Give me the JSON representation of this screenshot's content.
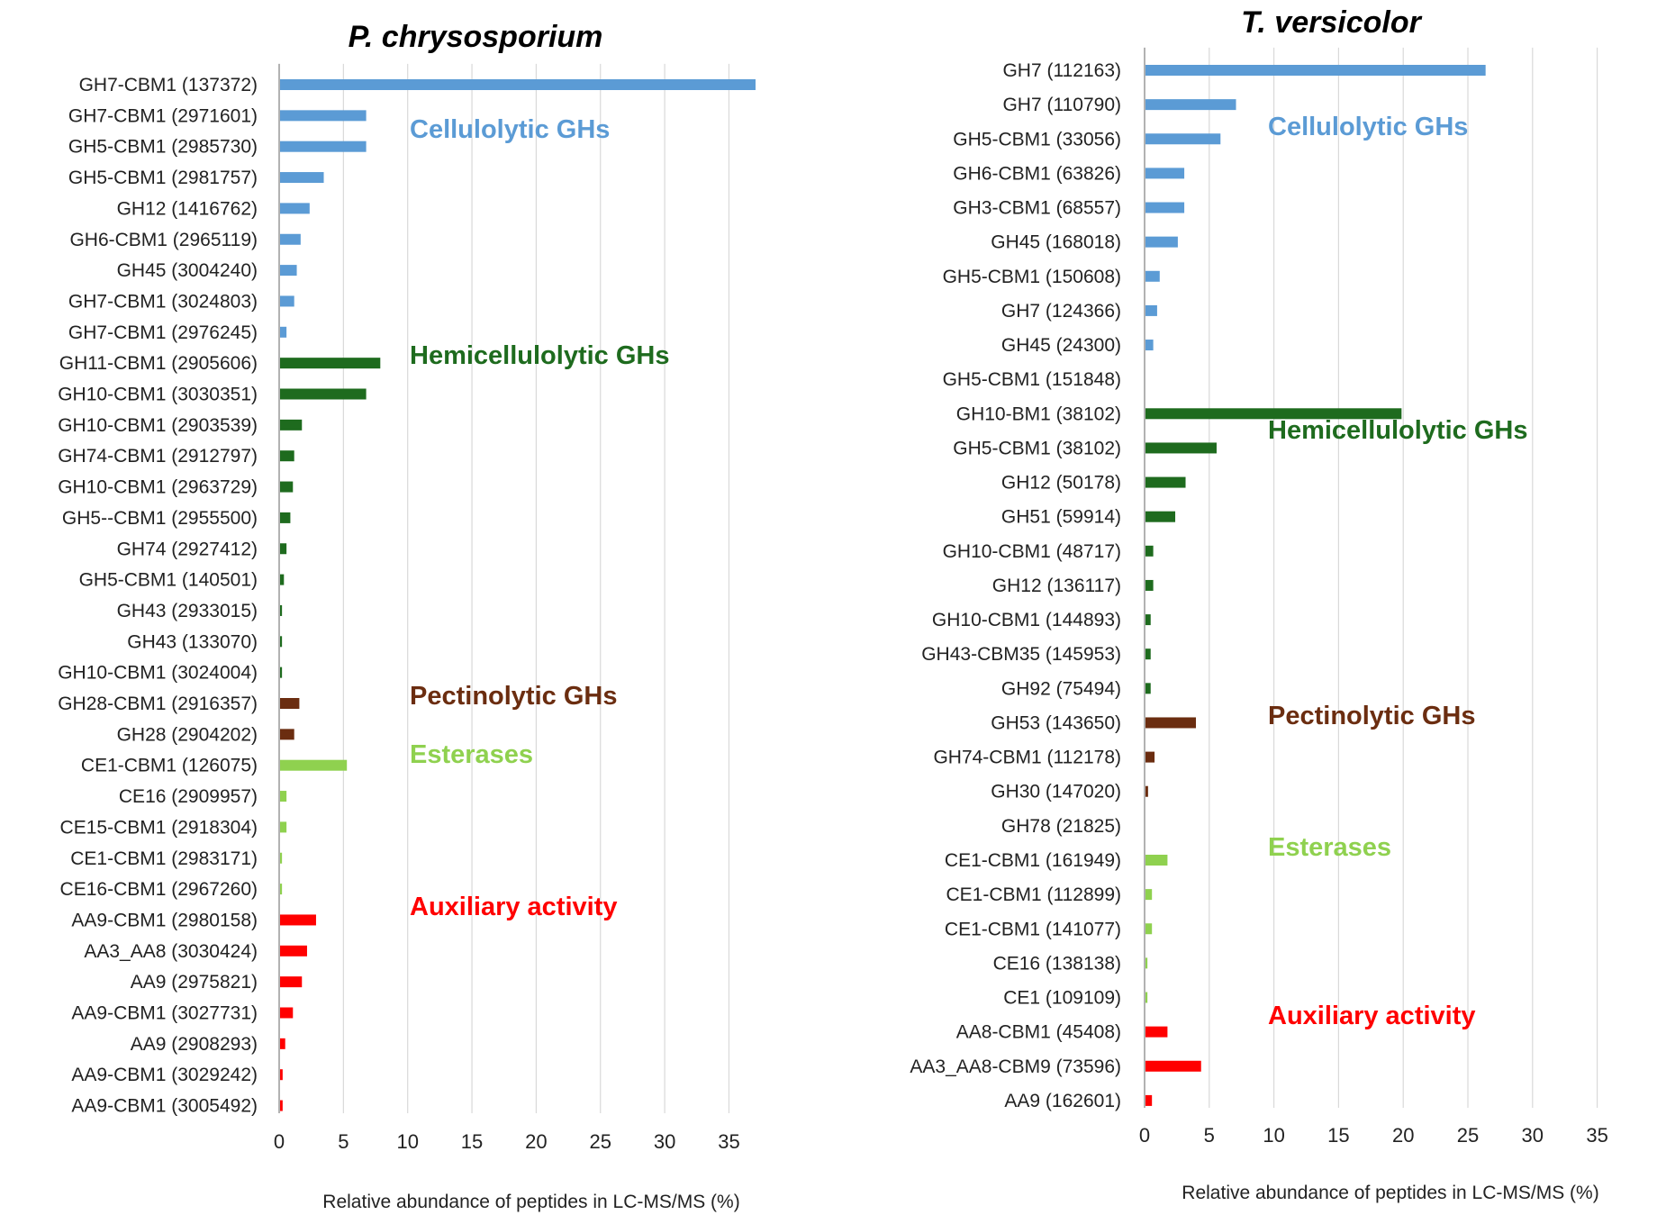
{
  "chart_data": [
    {
      "type": "bar",
      "orientation": "horizontal",
      "title": "P. chrysosporium",
      "xlabel": "Relative abundance of peptides in LC-MS/MS  (%)",
      "xlim": [
        0,
        37
      ],
      "xticks": [
        0,
        5,
        10,
        15,
        20,
        25,
        30,
        35
      ],
      "grid": "vertical",
      "categories": [
        "GH7-CBM1 (137372)",
        "GH7-CBM1 (2971601)",
        "GH5-CBM1 (2985730)",
        "GH5-CBM1 (2981757)",
        "GH12 (1416762)",
        "GH6-CBM1 (2965119)",
        "GH45 (3004240)",
        "GH7-CBM1 (3024803)",
        "GH7-CBM1 (2976245)",
        "GH11-CBM1 (2905606)",
        "GH10-CBM1 (3030351)",
        "GH10-CBM1 (2903539)",
        "GH74-CBM1 (2912797)",
        "GH10-CBM1 (2963729)",
        "GH5--CBM1 (2955500)",
        "GH74 (2927412)",
        "GH5-CBM1 (140501)",
        "GH43 (2933015)",
        "GH43 (133070)",
        "GH10-CBM1 (3024004)",
        "GH28-CBM1 (2916357)",
        "GH28 (2904202)",
        "CE1-CBM1 (126075)",
        "CE16 (2909957)",
        "CE15-CBM1 (2918304)",
        "CE1-CBM1 (2983171)",
        "CE16-CBM1 (2967260)",
        "AA9-CBM1 (2980158)",
        "AA3_AA8 (3030424)",
        "AA9 (2975821)",
        "AA9-CBM1 (3027731)",
        "AA9 (2908293)",
        "AA9-CBM1 (3029242)",
        "AA9-CBM1 (3005492)"
      ],
      "values": [
        37,
        6.7,
        6.7,
        3.4,
        2.3,
        1.6,
        1.3,
        1.1,
        0.5,
        7.8,
        6.7,
        1.7,
        1.1,
        1.0,
        0.8,
        0.5,
        0.3,
        0.15,
        0.15,
        0.15,
        1.5,
        1.1,
        5.2,
        0.5,
        0.5,
        0.15,
        0.15,
        2.8,
        2.1,
        1.7,
        1.0,
        0.4,
        0.2,
        0.2
      ],
      "groups": [
        "cell",
        "cell",
        "cell",
        "cell",
        "cell",
        "cell",
        "cell",
        "cell",
        "cell",
        "hemi",
        "hemi",
        "hemi",
        "hemi",
        "hemi",
        "hemi",
        "hemi",
        "hemi",
        "hemi",
        "hemi",
        "hemi",
        "pect",
        "pect",
        "est",
        "est",
        "est",
        "est",
        "est",
        "aux",
        "aux",
        "aux",
        "aux",
        "aux",
        "aux",
        "aux"
      ],
      "annotations": [
        {
          "group": "cell",
          "text": "Cellulolytic GHs"
        },
        {
          "group": "hemi",
          "text": "Hemicellulolytic GHs"
        },
        {
          "group": "pect",
          "text": "Pectinolytic GHs"
        },
        {
          "group": "est",
          "text": "Esterases"
        },
        {
          "group": "aux",
          "text": "Auxiliary activity"
        }
      ]
    },
    {
      "type": "bar",
      "orientation": "horizontal",
      "title": "T. versicolor",
      "xlabel": "Relative abundance of peptides in LC-MS/MS  (%)",
      "xlim": [
        0,
        36
      ],
      "xticks": [
        0,
        5,
        10,
        15,
        20,
        25,
        30,
        35
      ],
      "grid": "vertical",
      "categories": [
        "GH7 (112163)",
        "GH7 (110790)",
        "GH5-CBM1 (33056)",
        "GH6-CBM1 (63826)",
        "GH3-CBM1 (68557)",
        "GH45 (168018)",
        "GH5-CBM1 (150608)",
        "GH7 (124366)",
        "GH45 (24300)",
        "GH5-CBM1 (151848)",
        "GH10-BM1 (38102)",
        "GH5-CBM1 (38102)",
        "GH12 (50178)",
        "GH51 (59914)",
        "GH10-CBM1 (48717)",
        "GH12 (136117)",
        "GH10-CBM1 (144893)",
        "GH43-CBM35 (145953)",
        "GH92 (75494)",
        "GH53 (143650)",
        "GH74-CBM1 (112178)",
        "GH30 (147020)",
        "GH78 (21825)",
        "CE1-CBM1 (161949)",
        "CE1-CBM1 (112899)",
        "CE1-CBM1 (141077)",
        "CE16 (138138)",
        "CE1 (109109)",
        "AA8-CBM1 (45408)",
        "AA3_AA8-CBM9 (73596)",
        "AA9 (162601)"
      ],
      "values": [
        26.3,
        7.0,
        5.8,
        3.0,
        3.0,
        2.5,
        1.1,
        0.9,
        0.6,
        0,
        19.8,
        5.5,
        3.1,
        2.3,
        0.6,
        0.6,
        0.4,
        0.4,
        0.4,
        3.9,
        0.7,
        0.2,
        0,
        1.7,
        0.5,
        0.5,
        0.15,
        0.15,
        1.7,
        4.3,
        0.5
      ],
      "groups": [
        "cell",
        "cell",
        "cell",
        "cell",
        "cell",
        "cell",
        "cell",
        "cell",
        "cell",
        "cell",
        "hemi",
        "hemi",
        "hemi",
        "hemi",
        "hemi",
        "hemi",
        "hemi",
        "hemi",
        "hemi",
        "pect",
        "pect",
        "pect",
        "pect",
        "est",
        "est",
        "est",
        "est",
        "est",
        "aux",
        "aux",
        "aux"
      ],
      "annotations": [
        {
          "group": "cell",
          "text": "Cellulolytic GHs"
        },
        {
          "group": "hemi",
          "text": "Hemicellulolytic GHs"
        },
        {
          "group": "pect",
          "text": "Pectinolytic GHs"
        },
        {
          "group": "est",
          "text": "Esterases"
        },
        {
          "group": "aux",
          "text": "Auxiliary activity"
        }
      ]
    }
  ],
  "colors": {
    "cell": "#5b9bd5",
    "hemi": "#1e6b1e",
    "pect": "#6b2d10",
    "est": "#8fd14f",
    "aux": "#ff0000",
    "text": "#222222",
    "axis": "#999999",
    "grid": "#d9d9d9"
  }
}
